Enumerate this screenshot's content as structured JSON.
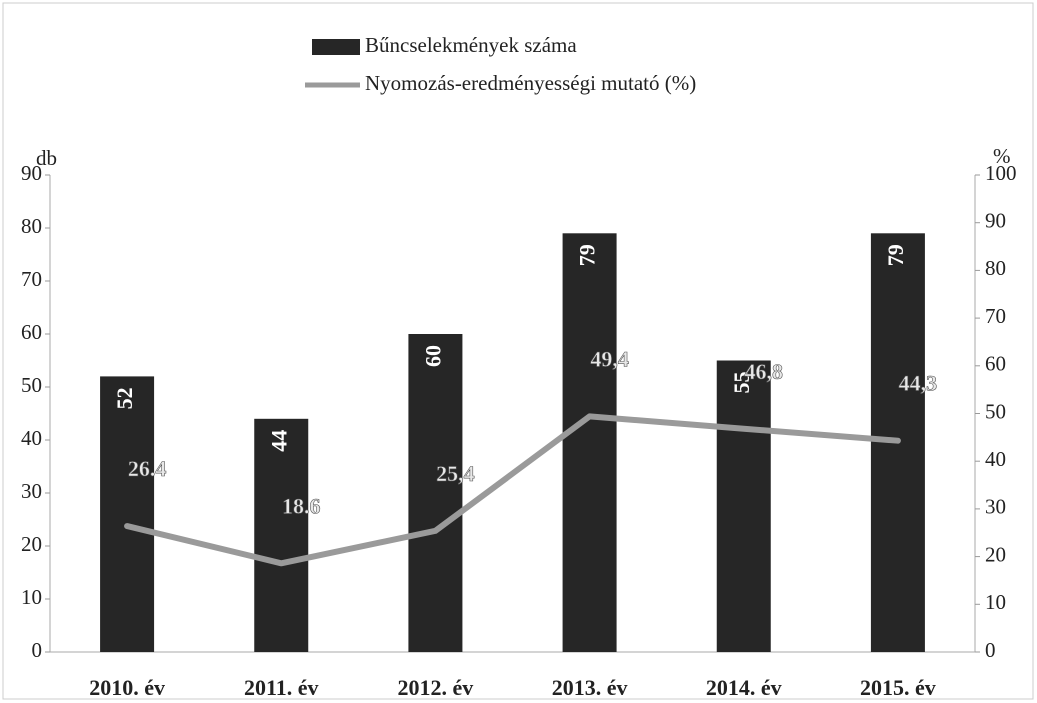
{
  "chart_data": {
    "type": "bar-line",
    "categories": [
      "2010. év",
      "2011. év",
      "2012. év",
      "2013. év",
      "2014. év",
      "2015. év"
    ],
    "series": [
      {
        "name": "Bűncselekmények száma",
        "type": "bar",
        "color": "#262626",
        "values": [
          52,
          44,
          60,
          79,
          55,
          79
        ]
      },
      {
        "name": "Nyomozás-eredményességi mutató (%)",
        "type": "line",
        "axis": "y2",
        "color": "#9a9a9a",
        "values": [
          26.4,
          18.6,
          25.4,
          49.4,
          46.8,
          44.3
        ],
        "value_labels": [
          "26.4",
          "18.6",
          "25,4",
          "49,4",
          "46,8",
          "44,3"
        ]
      }
    ],
    "ylabel": "db",
    "y2label": "%",
    "ylim": [
      0,
      90
    ],
    "yticks": [
      0,
      10,
      20,
      30,
      40,
      50,
      60,
      70,
      80,
      90
    ],
    "y2lim": [
      0,
      100
    ],
    "y2ticks": [
      0,
      10,
      20,
      30,
      40,
      50,
      60,
      70,
      80,
      90,
      100
    ],
    "legend": "top"
  }
}
